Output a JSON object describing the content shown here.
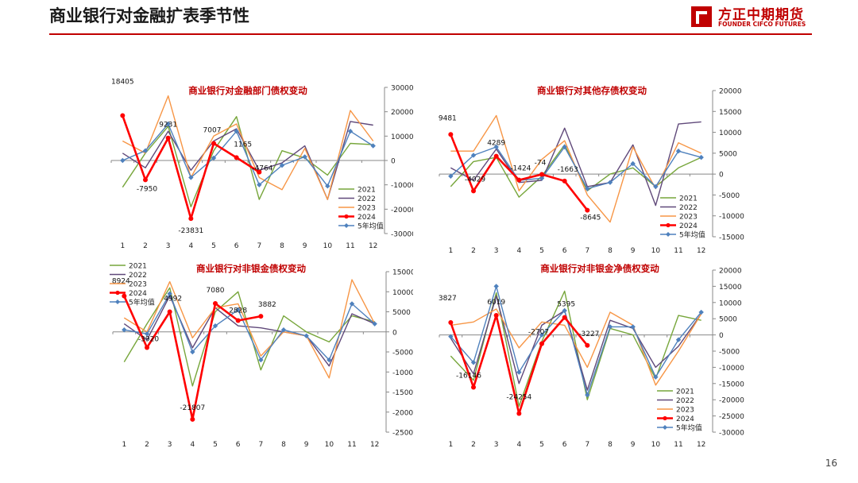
{
  "slide": {
    "title": "商业银行对金融扩表季节性",
    "page_number": "16"
  },
  "logo": {
    "cn": "方正中期期货",
    "en": "FOUNDER CIFCO FUTURES",
    "color": "#c00000"
  },
  "series_styles": [
    {
      "name": "2021",
      "color": "#77a63b",
      "marker": "none"
    },
    {
      "name": "2022",
      "color": "#60497a",
      "marker": "none"
    },
    {
      "name": "2023",
      "color": "#f79646",
      "marker": "none"
    },
    {
      "name": "2024",
      "color": "#ff0000",
      "marker": "circle",
      "thick": true
    },
    {
      "name": "5年均值",
      "color": "#4f81bd",
      "marker": "diamond"
    }
  ],
  "chart_data": [
    {
      "type": "line",
      "title": "商业银行对金融部门债权变动",
      "categories": [
        "1",
        "2",
        "3",
        "4",
        "5",
        "6",
        "7",
        "8",
        "9",
        "10",
        "11",
        "12"
      ],
      "ylim": [
        -30000,
        30000
      ],
      "yticks": [
        30000,
        20000,
        10000,
        0,
        -10000,
        -20000,
        -30000
      ],
      "legend": "bottom-right",
      "series": [
        {
          "name": "2021",
          "values": [
            -11000,
            3000,
            14000,
            -19000,
            4000,
            18000,
            -16000,
            4000,
            1000,
            -6000,
            7000,
            6500
          ]
        },
        {
          "name": "2022",
          "values": [
            3000,
            -3000,
            12000,
            -4000,
            8000,
            13000,
            -4000,
            -1000,
            6000,
            -16000,
            16000,
            14500
          ]
        },
        {
          "name": "2023",
          "values": [
            8000,
            3000,
            26500,
            -7000,
            10000,
            15000,
            -7000,
            -12000,
            5000,
            -16000,
            20500,
            8000
          ]
        },
        {
          "name": "2024",
          "values": [
            18405,
            -7950,
            9231,
            -23831,
            7007,
            1165,
            -4764,
            null,
            null,
            null,
            null,
            null
          ]
        },
        {
          "name": "5年均值",
          "values": [
            0,
            4000,
            15000,
            -7000,
            1000,
            12000,
            -10000,
            -2000,
            1500,
            -10500,
            12000,
            6000
          ]
        }
      ],
      "data_labels": [
        "18405",
        "-7950",
        "9231",
        "-23831",
        "7007",
        "1165",
        "-4764"
      ]
    },
    {
      "type": "line",
      "title": "商业银行对其他存债权变动",
      "categories": [
        "1",
        "2",
        "3",
        "4",
        "5",
        "6",
        "7",
        "8",
        "9",
        "10",
        "11",
        "12"
      ],
      "ylim": [
        -15000,
        20000
      ],
      "yticks": [
        20000,
        15000,
        10000,
        5000,
        0,
        -5000,
        -10000,
        -15000
      ],
      "legend": "bottom-right",
      "series": [
        {
          "name": "2021",
          "values": [
            -3000,
            3000,
            4000,
            -5500,
            -500,
            7000,
            -4000,
            0,
            1500,
            -3000,
            1500,
            4000
          ]
        },
        {
          "name": "2022",
          "values": [
            1500,
            -1500,
            6000,
            -2000,
            -1500,
            11000,
            -3000,
            -2000,
            7000,
            -7500,
            12000,
            12500
          ]
        },
        {
          "name": "2023",
          "values": [
            5500,
            5500,
            14000,
            -4000,
            3500,
            8000,
            -5000,
            -11500,
            6500,
            -3500,
            7500,
            5000
          ]
        },
        {
          "name": "2024",
          "values": [
            9481,
            -4029,
            4289,
            -1424,
            -74,
            -1663,
            -8645,
            null,
            null,
            null,
            null,
            null
          ]
        },
        {
          "name": "5年均值",
          "values": [
            -500,
            4500,
            6500,
            -1500,
            -1000,
            6500,
            -3500,
            -2000,
            2500,
            -3000,
            5500,
            4000
          ]
        }
      ],
      "data_labels": [
        "9481",
        "-4029",
        "4289",
        "-1424",
        "-74",
        "-1663",
        "-8645"
      ]
    },
    {
      "type": "line",
      "title": "商业银行对非银金债权变动",
      "categories": [
        "1",
        "2",
        "3",
        "4",
        "5",
        "6",
        "7",
        "8",
        "9",
        "10",
        "11",
        "12"
      ],
      "ylim": [
        -25000,
        15000
      ],
      "yticks": [
        15000,
        10000,
        5000,
        0,
        -5000,
        -10000,
        -15000,
        -20000,
        -25000
      ],
      "legend": "top-left",
      "series": [
        {
          "name": "2021",
          "values": [
            -7500,
            2000,
            11000,
            -13500,
            5000,
            10000,
            -9500,
            4000,
            0,
            -2500,
            4000,
            2500
          ]
        },
        {
          "name": "2022",
          "values": [
            2000,
            -2000,
            9000,
            -4000,
            6000,
            1500,
            1000,
            0,
            -1000,
            -8500,
            4500,
            2000
          ]
        },
        {
          "name": "2023",
          "values": [
            3500,
            0,
            12500,
            -1500,
            6000,
            7000,
            -6000,
            0,
            -1000,
            -11500,
            13000,
            2000
          ]
        },
        {
          "name": "2024",
          "values": [
            8924,
            -3920,
            4992,
            -21807,
            7080,
            2828,
            3882,
            null,
            null,
            null,
            null,
            null
          ]
        },
        {
          "name": "5年均值",
          "values": [
            500,
            -500,
            9500,
            -5000,
            1500,
            5500,
            -7000,
            500,
            -1000,
            -7000,
            7000,
            2000
          ]
        }
      ],
      "data_labels": [
        "8924",
        "-3920",
        "4992",
        "-21807",
        "7080",
        "2828",
        "3882"
      ]
    },
    {
      "type": "line",
      "title": "商业银行对非银金净债权变动",
      "categories": [
        "1",
        "2",
        "3",
        "4",
        "5",
        "6",
        "7",
        "8",
        "9",
        "10",
        "11",
        "12"
      ],
      "ylim": [
        -30000,
        20000
      ],
      "yticks": [
        20000,
        15000,
        10000,
        5000,
        0,
        -5000,
        -10000,
        -15000,
        -20000,
        -25000,
        -30000
      ],
      "legend": "bottom-left",
      "series": [
        {
          "name": "2021",
          "values": [
            -6500,
            -14000,
            13000,
            -22000,
            -2000,
            13500,
            -20000,
            2000,
            0,
            -13500,
            6000,
            4500
          ]
        },
        {
          "name": "2022",
          "values": [
            -1000,
            -12000,
            12000,
            -15000,
            3000,
            7500,
            -17000,
            4500,
            2000,
            -10000,
            -3500,
            6500
          ]
        },
        {
          "name": "2023",
          "values": [
            3000,
            4000,
            8000,
            -4000,
            4000,
            3000,
            -10000,
            7000,
            3000,
            -15500,
            -5000,
            6500
          ]
        },
        {
          "name": "2024",
          "values": [
            3827,
            -16146,
            6019,
            -24254,
            -2707,
            5395,
            -3227,
            null,
            null,
            null,
            null,
            null
          ]
        },
        {
          "name": "5年均值",
          "values": [
            -500,
            -8500,
            15000,
            -11500,
            0,
            7500,
            -18500,
            2500,
            2500,
            -13000,
            -1500,
            7000
          ]
        }
      ],
      "data_labels": [
        "3827",
        "-16146",
        "6019",
        "-24254",
        "-2707",
        "5395",
        "-3227"
      ]
    }
  ]
}
